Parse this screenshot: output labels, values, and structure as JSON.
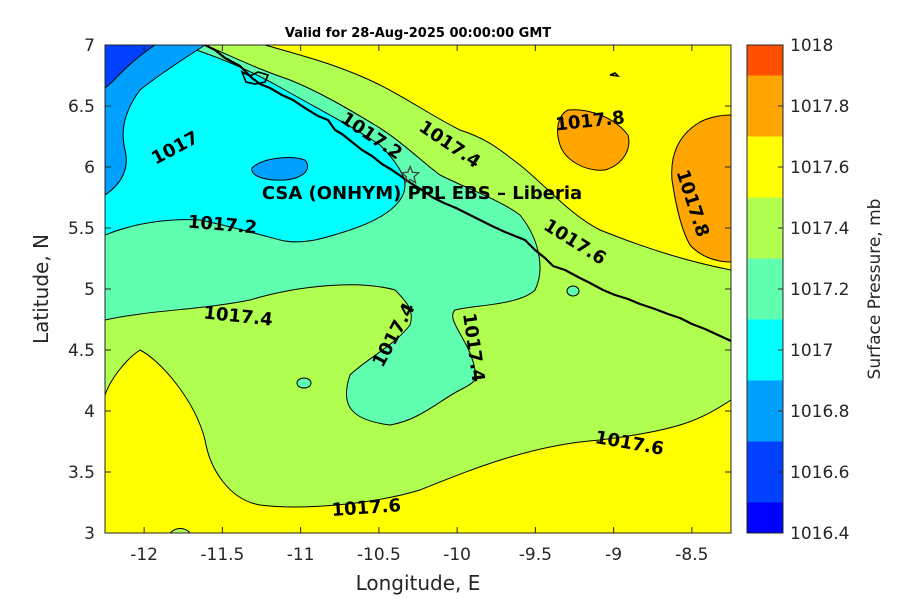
{
  "title": "Valid for 28-Aug-2025 00:00:00 GMT",
  "xlabel": "Longitude, E",
  "ylabel": "Latitude, N",
  "site_label": "CSA (ONHYM) PPL EBS  – Liberia",
  "site_location": {
    "lon": -10.3,
    "lat": 5.93
  },
  "xticks": [
    "-12",
    "-11.5",
    "-11",
    "-10.5",
    "-10",
    "-9.5",
    "-9",
    "-8.5"
  ],
  "xtick_values": [
    -12,
    -11.5,
    -11,
    -10.5,
    -10,
    -9.5,
    -9,
    -8.5
  ],
  "yticks": [
    "7",
    "6.5",
    "6",
    "5.5",
    "5",
    "4.5",
    "4",
    "3.5",
    "3"
  ],
  "ytick_values": [
    7,
    6.5,
    6,
    5.5,
    5,
    4.5,
    4,
    3.5,
    3
  ],
  "xlim": [
    -12.25,
    -8.25
  ],
  "ylim": [
    3,
    7
  ],
  "colorbar": {
    "label": "Surface Pressure, mb",
    "ticks": [
      "1018",
      "1017.8",
      "1017.6",
      "1017.4",
      "1017.2",
      "1017",
      "1016.8",
      "1016.6",
      "1016.4"
    ],
    "levels": [
      {
        "min": 1016.4,
        "max": 1016.5,
        "color": "#0000ff"
      },
      {
        "min": 1016.5,
        "max": 1016.7,
        "color": "#0040ff"
      },
      {
        "min": 1016.7,
        "max": 1016.9,
        "color": "#00a0ff"
      },
      {
        "min": 1016.9,
        "max": 1017.1,
        "color": "#00ffff"
      },
      {
        "min": 1017.1,
        "max": 1017.3,
        "color": "#60ffb0"
      },
      {
        "min": 1017.3,
        "max": 1017.5,
        "color": "#b0ff50"
      },
      {
        "min": 1017.5,
        "max": 1017.7,
        "color": "#ffff00"
      },
      {
        "min": 1017.7,
        "max": 1017.9,
        "color": "#ffa500"
      },
      {
        "min": 1017.9,
        "max": 1018.0,
        "color": "#ff5000"
      }
    ]
  },
  "chart_data": {
    "type": "contour",
    "variable": "Surface Pressure, mb",
    "contour_labels": [
      {
        "text": "1017",
        "lon": -11.8,
        "lat": 6.15
      },
      {
        "text": "1017.2",
        "lon": -10.55,
        "lat": 6.25
      },
      {
        "text": "1017.4",
        "lon": -10.05,
        "lat": 6.18
      },
      {
        "text": "1017.8",
        "lon": -9.15,
        "lat": 6.37
      },
      {
        "text": "1017.8",
        "lon": -8.5,
        "lat": 5.7
      },
      {
        "text": "1017.2",
        "lon": -11.5,
        "lat": 5.52
      },
      {
        "text": "1017.6",
        "lon": -9.25,
        "lat": 5.38
      },
      {
        "text": "1017.4",
        "lon": -11.4,
        "lat": 4.77
      },
      {
        "text": "1017.4",
        "lon": -10.4,
        "lat": 4.62
      },
      {
        "text": "1017.4",
        "lon": -9.9,
        "lat": 4.52
      },
      {
        "text": "1017.6",
        "lon": -8.9,
        "lat": 3.73
      },
      {
        "text": "1017.6",
        "lon": -10.58,
        "lat": 3.2
      }
    ]
  }
}
